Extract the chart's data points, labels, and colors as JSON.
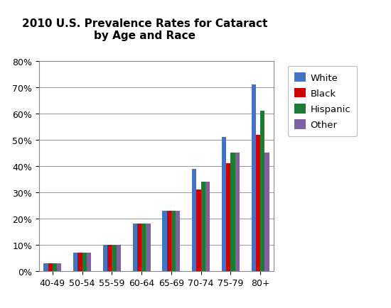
{
  "title": "2010 U.S. Prevalence Rates for Cataract\nby Age and Race",
  "categories": [
    "40-49",
    "50-54",
    "55-59",
    "60-64",
    "65-69",
    "70-74",
    "75-79",
    "80+"
  ],
  "series": {
    "White": [
      0.03,
      0.07,
      0.1,
      0.18,
      0.23,
      0.39,
      0.51,
      0.71
    ],
    "Black": [
      0.03,
      0.07,
      0.1,
      0.18,
      0.23,
      0.31,
      0.41,
      0.52
    ],
    "Hispanic": [
      0.03,
      0.07,
      0.1,
      0.18,
      0.23,
      0.34,
      0.45,
      0.61
    ],
    "Other": [
      0.03,
      0.07,
      0.1,
      0.18,
      0.23,
      0.34,
      0.45,
      0.45
    ]
  },
  "colors": {
    "White": "#4472C4",
    "Black": "#CC0000",
    "Hispanic": "#1E7B34",
    "Other": "#8060A0"
  },
  "legend_order": [
    "White",
    "Black",
    "Hispanic",
    "Other"
  ],
  "ylim": [
    0,
    0.8
  ],
  "yticks": [
    0.0,
    0.1,
    0.2,
    0.3,
    0.4,
    0.5,
    0.6,
    0.7,
    0.8
  ],
  "ytick_labels": [
    "0%",
    "10%",
    "20%",
    "30%",
    "40%",
    "50%",
    "60%",
    "70%",
    "80%"
  ],
  "background_color": "#FFFFFF",
  "plot_background": "#FFFFFF",
  "grid_color": "#999999",
  "title_fontsize": 11,
  "tick_fontsize": 9,
  "legend_fontsize": 9.5,
  "bar_width": 0.15
}
